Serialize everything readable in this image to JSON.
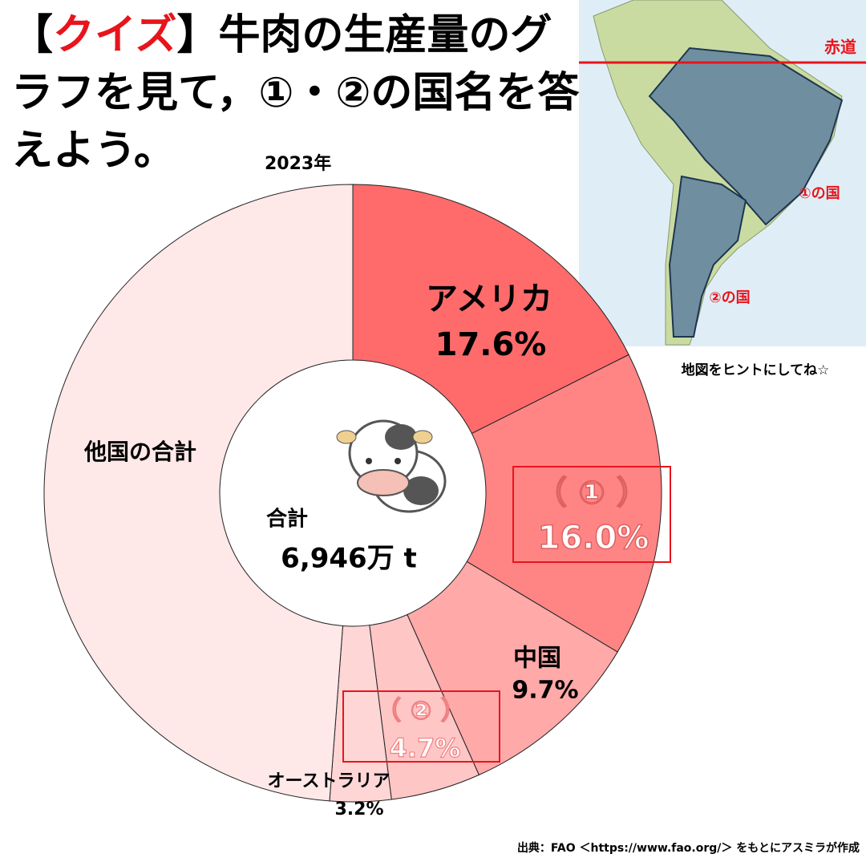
{
  "chart_data": {
    "type": "pie",
    "title_lead": "【",
    "title_highlight": "クイズ",
    "title_rest": "】牛肉の生産量のグラフを見て，①・②の国名を答えよう。",
    "subtitle": "2023年",
    "center_label": "合計",
    "center_total": "6,946万 t",
    "categories": [
      "アメリカ",
      "（ ① ）",
      "中国",
      "（ ② ）",
      "オーストラリア",
      "他国の合計"
    ],
    "values": [
      17.6,
      16.0,
      9.7,
      4.7,
      3.2,
      48.8
    ],
    "value_labels": [
      "17.6%",
      "16.0%",
      "9.7%",
      "4.7%",
      "3.2%",
      null
    ],
    "colors": [
      "#ff6b6b",
      "#ff8585",
      "#ffa9a9",
      "#ffc6c6",
      "#ffd6d6",
      "#ffe8e8"
    ],
    "map_labels": {
      "equator": "赤道",
      "country1": "①の国",
      "country2": "②の国",
      "hint": "地図をヒントにしてね☆"
    },
    "source": "出典：FAO ＜https://www.fao.org/＞ をもとにアスミラが作成"
  }
}
